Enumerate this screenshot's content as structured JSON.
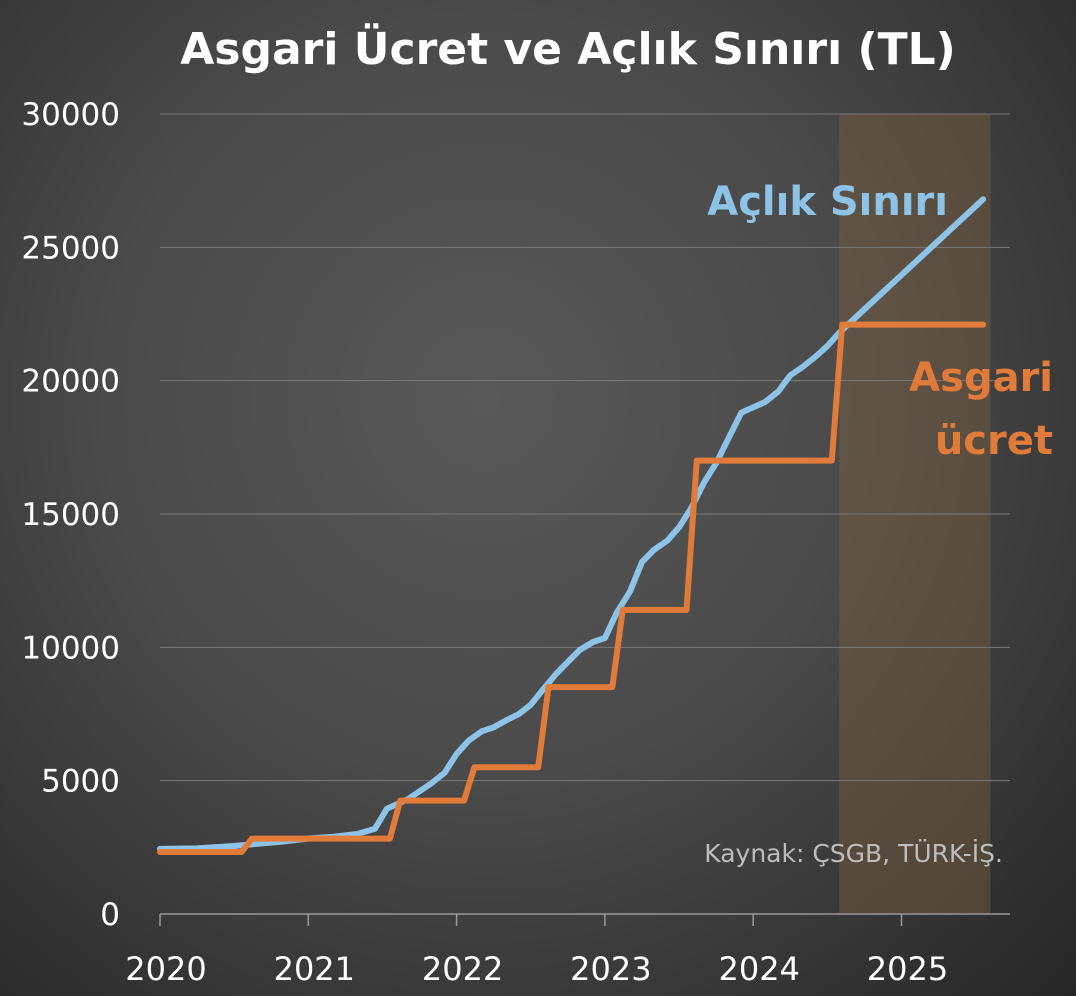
{
  "chart_data": {
    "type": "line",
    "title": "Asgari Ücret ve Açlık Sınırı (TL)",
    "xlabel": "",
    "ylabel": "",
    "xlim": [
      2020,
      2025.6
    ],
    "ylim": [
      0,
      30000
    ],
    "x_ticks": [
      "2020",
      "2021",
      "2022",
      "2023",
      "2024",
      "2025"
    ],
    "y_ticks": [
      "0",
      "5000",
      "10000",
      "15000",
      "20000",
      "25000",
      "30000"
    ],
    "grid": true,
    "highlight_region": {
      "x_start": 2024.58,
      "x_end": 2025.6
    },
    "source": "Kaynak: ÇSGB, TÜRK-İŞ.",
    "series": [
      {
        "name": "Açlık Sınırı",
        "color": "#8dc3e6",
        "label_lines": [
          "Açlık Sınırı"
        ],
        "points": [
          [
            2020.0,
            2440
          ],
          [
            2020.25,
            2460
          ],
          [
            2020.5,
            2550
          ],
          [
            2020.67,
            2640
          ],
          [
            2020.83,
            2720
          ],
          [
            2021.0,
            2830
          ],
          [
            2021.17,
            2900
          ],
          [
            2021.33,
            3000
          ],
          [
            2021.45,
            3200
          ],
          [
            2021.53,
            3950
          ],
          [
            2021.67,
            4300
          ],
          [
            2021.83,
            4900
          ],
          [
            2021.92,
            5300
          ],
          [
            2022.0,
            6000
          ],
          [
            2022.08,
            6500
          ],
          [
            2022.17,
            6850
          ],
          [
            2022.25,
            7000
          ],
          [
            2022.33,
            7250
          ],
          [
            2022.42,
            7500
          ],
          [
            2022.5,
            7850
          ],
          [
            2022.58,
            8400
          ],
          [
            2022.67,
            9000
          ],
          [
            2022.75,
            9450
          ],
          [
            2022.83,
            9900
          ],
          [
            2022.92,
            10200
          ],
          [
            2023.0,
            10350
          ],
          [
            2023.08,
            11300
          ],
          [
            2023.17,
            12100
          ],
          [
            2023.25,
            13200
          ],
          [
            2023.33,
            13650
          ],
          [
            2023.42,
            14000
          ],
          [
            2023.5,
            14500
          ],
          [
            2023.58,
            15200
          ],
          [
            2023.67,
            16200
          ],
          [
            2023.75,
            16900
          ],
          [
            2023.83,
            17800
          ],
          [
            2023.92,
            18800
          ],
          [
            2024.0,
            19000
          ],
          [
            2024.08,
            19200
          ],
          [
            2024.17,
            19600
          ],
          [
            2024.25,
            20200
          ],
          [
            2024.33,
            20500
          ],
          [
            2024.42,
            20900
          ],
          [
            2024.5,
            21300
          ],
          [
            2024.58,
            21800
          ],
          [
            2025.55,
            26800
          ]
        ]
      },
      {
        "name": "Asgari ücret",
        "color": "#e07b3a",
        "label_lines": [
          "Asgari",
          "ücret"
        ],
        "points": [
          [
            2020.0,
            2324
          ],
          [
            2020.55,
            2324
          ],
          [
            2020.62,
            2826
          ],
          [
            2021.55,
            2826
          ],
          [
            2021.62,
            4253
          ],
          [
            2022.05,
            4253
          ],
          [
            2022.12,
            5500
          ],
          [
            2022.55,
            5500
          ],
          [
            2022.62,
            8507
          ],
          [
            2023.05,
            8507
          ],
          [
            2023.12,
            11402
          ],
          [
            2023.55,
            11402
          ],
          [
            2023.62,
            17002
          ],
          [
            2024.53,
            17002
          ],
          [
            2024.6,
            22104
          ],
          [
            2025.55,
            22104
          ]
        ]
      }
    ]
  }
}
